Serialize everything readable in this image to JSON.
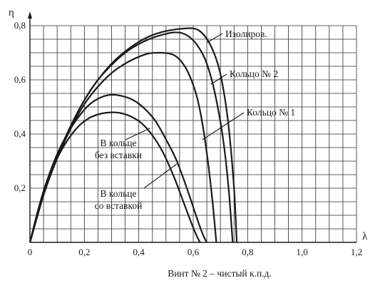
{
  "chart_data": {
    "type": "line",
    "title": "",
    "caption": "Винт № 2 – чистый к.п.д.",
    "xlabel": "λ",
    "ylabel": "η",
    "xlim": [
      0,
      1.2
    ],
    "ylim": [
      0,
      0.8
    ],
    "x_ticks": [
      "0",
      "0,2",
      "0,4",
      "0,6",
      "0,8",
      "1,0",
      "1,2"
    ],
    "y_ticks": [
      "0,2",
      "0,4",
      "0,6",
      "0,8"
    ],
    "grid": true,
    "legend": "none",
    "series": [
      {
        "label": "Изолиров.",
        "x": [
          0,
          0.05,
          0.1,
          0.15,
          0.2,
          0.25,
          0.3,
          0.35,
          0.4,
          0.45,
          0.5,
          0.55,
          0.6,
          0.63,
          0.66,
          0.69,
          0.71,
          0.73,
          0.75,
          0.76
        ],
        "y": [
          0,
          0.175,
          0.315,
          0.43,
          0.525,
          0.6,
          0.66,
          0.705,
          0.74,
          0.765,
          0.78,
          0.788,
          0.79,
          0.775,
          0.735,
          0.66,
          0.57,
          0.43,
          0.2,
          0
        ]
      },
      {
        "label": "Кольцо № 2",
        "x": [
          0,
          0.05,
          0.1,
          0.15,
          0.2,
          0.25,
          0.3,
          0.35,
          0.4,
          0.45,
          0.5,
          0.53,
          0.56,
          0.59,
          0.62,
          0.65,
          0.68,
          0.71,
          0.73,
          0.745
        ],
        "y": [
          0,
          0.175,
          0.315,
          0.43,
          0.525,
          0.6,
          0.655,
          0.7,
          0.732,
          0.755,
          0.77,
          0.775,
          0.772,
          0.755,
          0.72,
          0.66,
          0.55,
          0.38,
          0.2,
          0
        ]
      },
      {
        "label": "Кольцо № 1",
        "x": [
          0,
          0.05,
          0.1,
          0.15,
          0.2,
          0.25,
          0.3,
          0.35,
          0.4,
          0.44,
          0.48,
          0.52,
          0.55,
          0.58,
          0.61,
          0.63,
          0.65,
          0.67,
          0.685
        ],
        "y": [
          0,
          0.175,
          0.31,
          0.42,
          0.51,
          0.575,
          0.625,
          0.66,
          0.685,
          0.698,
          0.7,
          0.695,
          0.675,
          0.63,
          0.55,
          0.46,
          0.33,
          0.16,
          0
        ]
      },
      {
        "label": "В кольце без вставки",
        "x": [
          0,
          0.03,
          0.06,
          0.1,
          0.14,
          0.18,
          0.22,
          0.26,
          0.3,
          0.34,
          0.38,
          0.42,
          0.46,
          0.5,
          0.54,
          0.58,
          0.61,
          0.635,
          0.65
        ],
        "y": [
          0,
          0.12,
          0.22,
          0.325,
          0.405,
          0.465,
          0.51,
          0.535,
          0.545,
          0.54,
          0.525,
          0.495,
          0.45,
          0.38,
          0.3,
          0.19,
          0.1,
          0.03,
          0
        ]
      },
      {
        "label": "В кольце со вставкой",
        "x": [
          0,
          0.03,
          0.06,
          0.1,
          0.14,
          0.18,
          0.22,
          0.26,
          0.3,
          0.33,
          0.37,
          0.41,
          0.45,
          0.49,
          0.53,
          0.56,
          0.59,
          0.61,
          0.625
        ],
        "y": [
          0,
          0.115,
          0.21,
          0.31,
          0.38,
          0.43,
          0.46,
          0.475,
          0.48,
          0.478,
          0.465,
          0.44,
          0.395,
          0.33,
          0.24,
          0.16,
          0.08,
          0.03,
          0
        ]
      }
    ],
    "annotations": [
      {
        "text": "Изолиров.",
        "target_series": 0
      },
      {
        "text": "Кольцо № 2",
        "target_series": 1
      },
      {
        "text": "Кольцо № 1",
        "target_series": 2
      },
      {
        "text": "В кольце",
        "target_series": 3
      },
      {
        "text": "без вставки",
        "target_series": 3
      },
      {
        "text": "В кольце",
        "target_series": 4
      },
      {
        "text": "со вставкой",
        "target_series": 4
      }
    ]
  },
  "colors": {
    "ink": "#1a1a1a",
    "grid": "#2b2b2b",
    "background": "#ffffff"
  }
}
